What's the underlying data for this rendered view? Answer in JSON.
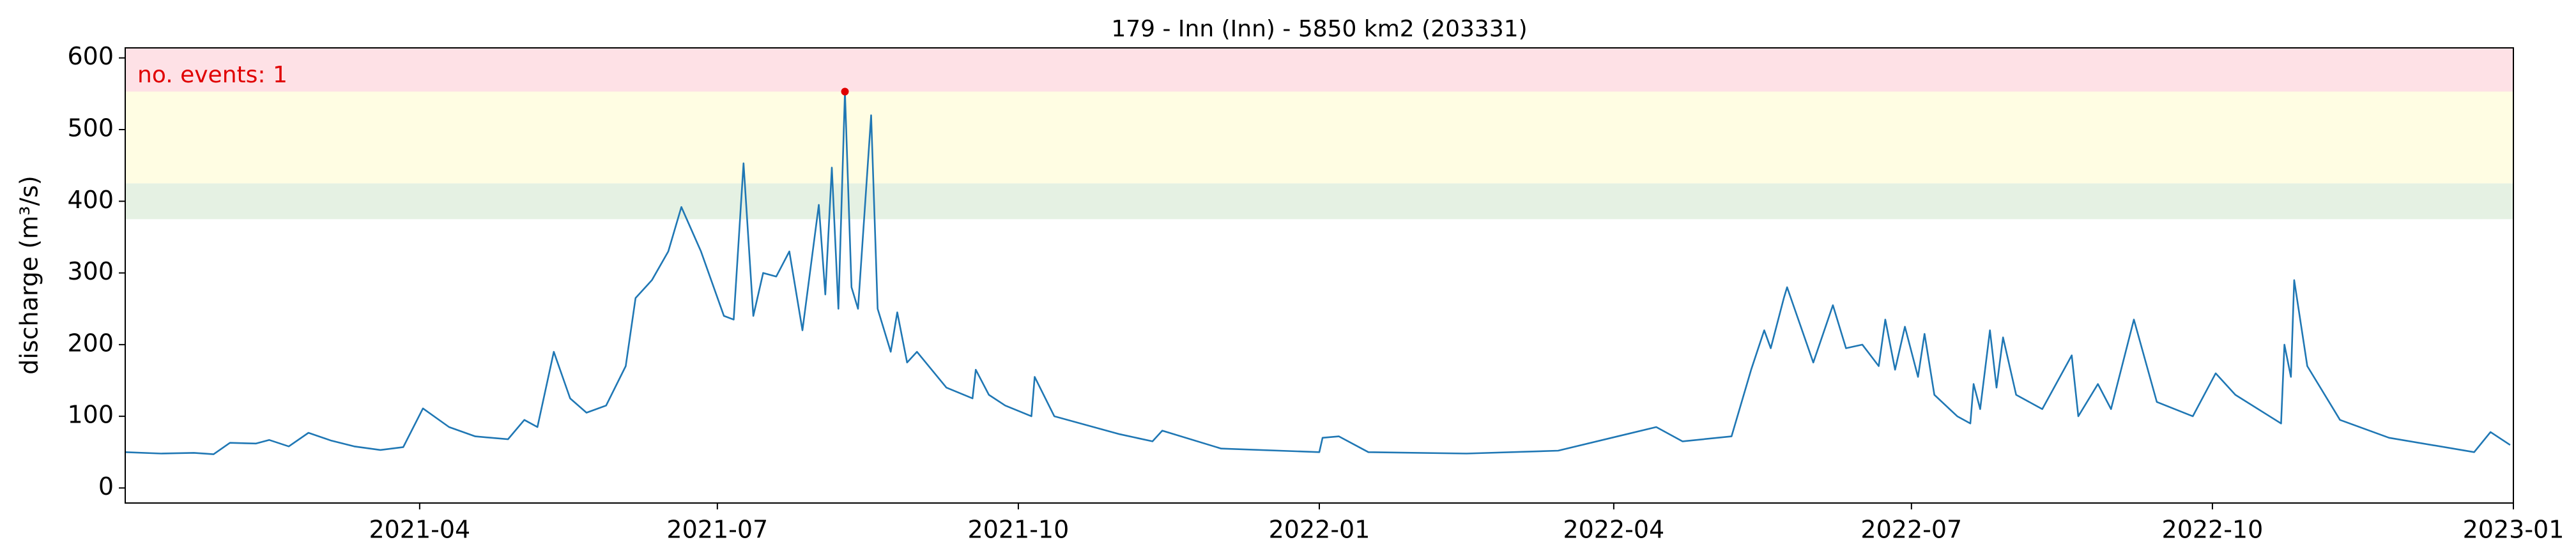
{
  "chart_data": {
    "type": "line",
    "title": "179 - Inn (Inn) - 5850 km2 (203331)",
    "ylabel": "discharge (m³/s)",
    "annotation": "no. events: 1",
    "annotation_color": "#e00000",
    "x": [
      "2021-01-01",
      "2021-01-12",
      "2021-01-22",
      "2021-01-28",
      "2021-02-02",
      "2021-02-10",
      "2021-02-14",
      "2021-02-20",
      "2021-02-26",
      "2021-03-05",
      "2021-03-12",
      "2021-03-20",
      "2021-03-27",
      "2021-04-02",
      "2021-04-10",
      "2021-04-18",
      "2021-04-28",
      "2021-05-03",
      "2021-05-07",
      "2021-05-12",
      "2021-05-17",
      "2021-05-22",
      "2021-05-28",
      "2021-06-03",
      "2021-06-06",
      "2021-06-11",
      "2021-06-16",
      "2021-06-20",
      "2021-06-26",
      "2021-07-03",
      "2021-07-06",
      "2021-07-09",
      "2021-07-12",
      "2021-07-15",
      "2021-07-19",
      "2021-07-23",
      "2021-07-27",
      "2021-08-01",
      "2021-08-03",
      "2021-08-05",
      "2021-08-07",
      "2021-08-09",
      "2021-08-11",
      "2021-08-13",
      "2021-08-17",
      "2021-08-19",
      "2021-08-23",
      "2021-08-25",
      "2021-08-28",
      "2021-08-31",
      "2021-09-09",
      "2021-09-17",
      "2021-09-18",
      "2021-09-22",
      "2021-09-27",
      "2021-10-05",
      "2021-10-06",
      "2021-10-12",
      "2021-11-01",
      "2021-11-11",
      "2021-11-14",
      "2021-12-02",
      "2022-01-01",
      "2022-01-02",
      "2022-01-07",
      "2022-01-16",
      "2022-02-15",
      "2022-03-15",
      "2022-04-14",
      "2022-04-22",
      "2022-05-07",
      "2022-05-13",
      "2022-05-17",
      "2022-05-19",
      "2022-05-23",
      "2022-05-24",
      "2022-06-01",
      "2022-06-07",
      "2022-06-11",
      "2022-06-16",
      "2022-06-21",
      "2022-06-23",
      "2022-06-26",
      "2022-06-29",
      "2022-07-03",
      "2022-07-05",
      "2022-07-08",
      "2022-07-15",
      "2022-07-19",
      "2022-07-20",
      "2022-07-22",
      "2022-07-25",
      "2022-07-27",
      "2022-07-29",
      "2022-08-02",
      "2022-08-10",
      "2022-08-19",
      "2022-08-21",
      "2022-08-27",
      "2022-08-31",
      "2022-09-07",
      "2022-09-14",
      "2022-09-25",
      "2022-10-02",
      "2022-10-08",
      "2022-10-22",
      "2022-10-23",
      "2022-10-25",
      "2022-10-26",
      "2022-10-30",
      "2022-11-09",
      "2022-11-24",
      "2022-12-20",
      "2022-12-25",
      "2022-12-31"
    ],
    "series": [
      {
        "color": "#1f77b4",
        "values": [
          50,
          48,
          49,
          47,
          63,
          62,
          67,
          58,
          77,
          66,
          58,
          53,
          57,
          111,
          85,
          72,
          68,
          95,
          85,
          190,
          125,
          105,
          115,
          170,
          265,
          290,
          330,
          392,
          330,
          240,
          235,
          453,
          240,
          300,
          295,
          330,
          220,
          395,
          270,
          447,
          250,
          553,
          280,
          250,
          520,
          250,
          190,
          245,
          175,
          190,
          140,
          125,
          165,
          130,
          115,
          100,
          155,
          100,
          75,
          65,
          80,
          55,
          50,
          70,
          72,
          50,
          48,
          52,
          85,
          65,
          72,
          165,
          220,
          195,
          265,
          280,
          175,
          255,
          195,
          200,
          170,
          235,
          165,
          225,
          155,
          215,
          130,
          100,
          90,
          145,
          110,
          220,
          140,
          210,
          130,
          110,
          185,
          100,
          145,
          110,
          235,
          120,
          100,
          160,
          130,
          90,
          200,
          155,
          290,
          170,
          95,
          70,
          50,
          78,
          60
        ]
      }
    ],
    "events": [
      {
        "x": "2021-08-09",
        "value": 553,
        "color": "#e00000"
      }
    ],
    "bands": [
      {
        "from": 375,
        "to": 425,
        "color": "#e5f1e3"
      },
      {
        "from": 425,
        "to": 553,
        "color": "#fffde3"
      },
      {
        "from": 553,
        "to": 614,
        "color": "#fee1e6"
      }
    ],
    "xlim": [
      "2021-01-01",
      "2023-01-01"
    ],
    "xticks": [
      "2021-04",
      "2021-07",
      "2021-10",
      "2022-01",
      "2022-04",
      "2022-07",
      "2022-10",
      "2023-01"
    ],
    "ylim": [
      -21,
      614
    ],
    "yticks": [
      0,
      100,
      200,
      300,
      400,
      500,
      600
    ]
  }
}
